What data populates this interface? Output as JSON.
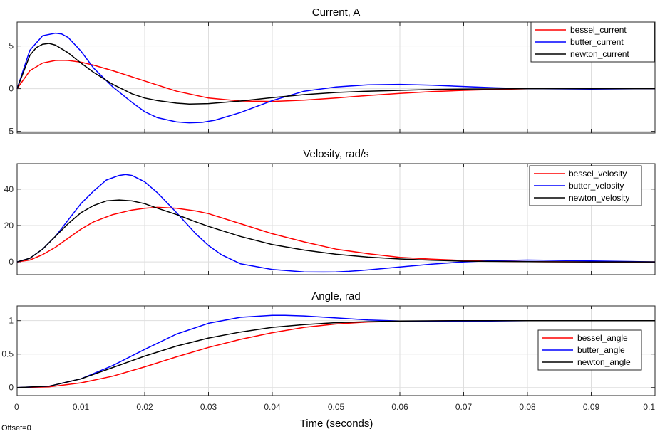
{
  "figure": {
    "xlabel": "Time (seconds)",
    "offset_text": "Offset=0",
    "colors": {
      "bessel": "#ff0000",
      "butter": "#0000ff",
      "newton": "#000000"
    }
  },
  "chart_data": [
    {
      "type": "line",
      "title": "Current, A",
      "xlabel": "",
      "ylabel": "",
      "xlim": [
        0,
        0.1
      ],
      "ylim": [
        -5.2,
        7.8
      ],
      "xticks": [
        0,
        0.01,
        0.02,
        0.03,
        0.04,
        0.05,
        0.06,
        0.07,
        0.08,
        0.09,
        0.1
      ],
      "yticks": [
        -5,
        0,
        5
      ],
      "ytick_labels": [
        "-5",
        "0",
        "5"
      ],
      "grid": true,
      "legend_position": "top-right",
      "series": [
        {
          "name": "bessel_current",
          "color": "#ff0000",
          "x": [
            0,
            0.002,
            0.004,
            0.006,
            0.007,
            0.008,
            0.01,
            0.012,
            0.015,
            0.02,
            0.025,
            0.03,
            0.035,
            0.04,
            0.045,
            0.05,
            0.055,
            0.06,
            0.065,
            0.07,
            0.075,
            0.08,
            0.09,
            0.1
          ],
          "y": [
            0,
            2.1,
            3.0,
            3.3,
            3.32,
            3.3,
            3.1,
            2.75,
            2.1,
            0.9,
            -0.3,
            -1.1,
            -1.45,
            -1.5,
            -1.35,
            -1.1,
            -0.8,
            -0.55,
            -0.35,
            -0.2,
            -0.1,
            -0.02,
            0,
            0
          ]
        },
        {
          "name": "butter_current",
          "color": "#0000ff",
          "x": [
            0,
            0.002,
            0.004,
            0.006,
            0.007,
            0.008,
            0.01,
            0.012,
            0.015,
            0.018,
            0.02,
            0.022,
            0.025,
            0.027,
            0.029,
            0.031,
            0.035,
            0.04,
            0.045,
            0.05,
            0.055,
            0.06,
            0.065,
            0.07,
            0.075,
            0.08,
            0.09,
            0.1
          ],
          "y": [
            0,
            4.5,
            6.2,
            6.5,
            6.4,
            6.0,
            4.4,
            2.4,
            0.2,
            -1.6,
            -2.7,
            -3.4,
            -3.9,
            -4.0,
            -3.95,
            -3.7,
            -2.8,
            -1.4,
            -0.3,
            0.2,
            0.45,
            0.5,
            0.4,
            0.25,
            0.1,
            0,
            -0.05,
            0
          ]
        },
        {
          "name": "newton_current",
          "color": "#000000",
          "x": [
            0,
            0.002,
            0.003,
            0.004,
            0.005,
            0.006,
            0.008,
            0.01,
            0.012,
            0.015,
            0.018,
            0.02,
            0.022,
            0.025,
            0.027,
            0.03,
            0.035,
            0.04,
            0.045,
            0.05,
            0.055,
            0.06,
            0.065,
            0.07,
            0.08,
            0.09,
            0.1
          ],
          "y": [
            0,
            3.9,
            4.8,
            5.2,
            5.3,
            5.1,
            4.2,
            3.0,
            1.9,
            0.5,
            -0.6,
            -1.1,
            -1.4,
            -1.7,
            -1.8,
            -1.75,
            -1.45,
            -1.05,
            -0.7,
            -0.45,
            -0.3,
            -0.2,
            -0.1,
            -0.05,
            0,
            0,
            0
          ]
        }
      ]
    },
    {
      "type": "line",
      "title": "Velosity, rad/s",
      "xlabel": "",
      "ylabel": "",
      "xlim": [
        0,
        0.1
      ],
      "ylim": [
        -7,
        54
      ],
      "xticks": [
        0,
        0.01,
        0.02,
        0.03,
        0.04,
        0.05,
        0.06,
        0.07,
        0.08,
        0.09,
        0.1
      ],
      "yticks": [
        0,
        20,
        40
      ],
      "ytick_labels": [
        "0",
        "20",
        "40"
      ],
      "grid": true,
      "legend_position": "top-right",
      "series": [
        {
          "name": "bessel_velosity",
          "color": "#ff0000",
          "x": [
            0,
            0.002,
            0.004,
            0.006,
            0.008,
            0.01,
            0.012,
            0.015,
            0.018,
            0.02,
            0.022,
            0.025,
            0.028,
            0.03,
            0.035,
            0.04,
            0.045,
            0.05,
            0.055,
            0.06,
            0.065,
            0.07,
            0.075,
            0.08,
            0.09,
            0.1
          ],
          "y": [
            0,
            1,
            4,
            8,
            13,
            18,
            22,
            26,
            28.5,
            29.5,
            30,
            29.5,
            28,
            26.5,
            21,
            15.5,
            11,
            7,
            4.5,
            2.5,
            1.5,
            0.8,
            0.3,
            0.1,
            0,
            0
          ]
        },
        {
          "name": "butter_velosity",
          "color": "#0000ff",
          "x": [
            0,
            0.002,
            0.004,
            0.006,
            0.008,
            0.01,
            0.012,
            0.014,
            0.016,
            0.017,
            0.018,
            0.02,
            0.022,
            0.025,
            0.028,
            0.03,
            0.032,
            0.035,
            0.04,
            0.045,
            0.048,
            0.05,
            0.052,
            0.055,
            0.06,
            0.065,
            0.07,
            0.075,
            0.08,
            0.085,
            0.09,
            0.1
          ],
          "y": [
            0,
            2,
            7,
            14,
            23,
            32,
            39,
            45,
            47.5,
            48,
            47.5,
            44,
            38,
            27,
            15.5,
            9,
            4,
            -1,
            -4.2,
            -5.5,
            -5.6,
            -5.5,
            -5.2,
            -4.4,
            -2.8,
            -1.2,
            0,
            0.7,
            1,
            0.8,
            0.5,
            0
          ]
        },
        {
          "name": "newton_velosity",
          "color": "#000000",
          "x": [
            0,
            0.002,
            0.004,
            0.006,
            0.008,
            0.01,
            0.012,
            0.014,
            0.016,
            0.018,
            0.02,
            0.022,
            0.025,
            0.028,
            0.03,
            0.035,
            0.04,
            0.045,
            0.05,
            0.055,
            0.06,
            0.065,
            0.07,
            0.08,
            0.09,
            0.1
          ],
          "y": [
            0,
            2,
            7,
            14,
            21,
            27,
            31,
            33.5,
            34,
            33.5,
            32,
            29.5,
            26,
            22,
            19.5,
            14,
            9.5,
            6.5,
            4.2,
            2.6,
            1.6,
            0.9,
            0.4,
            0.1,
            0,
            0
          ]
        }
      ]
    },
    {
      "type": "line",
      "title": "Angle, rad",
      "xlabel": "Time (seconds)",
      "ylabel": "",
      "xlim": [
        0,
        0.1
      ],
      "ylim": [
        -0.12,
        1.22
      ],
      "xticks": [
        0,
        0.01,
        0.02,
        0.03,
        0.04,
        0.05,
        0.06,
        0.07,
        0.08,
        0.09,
        0.1
      ],
      "xtick_labels": [
        "0",
        "0.01",
        "0.02",
        "0.03",
        "0.04",
        "0.05",
        "0.06",
        "0.07",
        "0.08",
        "0.09",
        "0.1"
      ],
      "yticks": [
        0,
        0.5,
        1
      ],
      "ytick_labels": [
        "0",
        "0.5",
        "1"
      ],
      "grid": true,
      "legend_position": "middle-right",
      "series": [
        {
          "name": "bessel_angle",
          "color": "#ff0000",
          "x": [
            0,
            0.005,
            0.01,
            0.015,
            0.02,
            0.025,
            0.03,
            0.035,
            0.04,
            0.045,
            0.05,
            0.055,
            0.06,
            0.07,
            0.08,
            0.09,
            0.1
          ],
          "y": [
            0,
            0.01,
            0.07,
            0.17,
            0.31,
            0.46,
            0.6,
            0.72,
            0.82,
            0.9,
            0.95,
            0.98,
            0.99,
            1.0,
            1.0,
            1.0,
            1.0
          ]
        },
        {
          "name": "butter_angle",
          "color": "#0000ff",
          "x": [
            0,
            0.005,
            0.01,
            0.015,
            0.02,
            0.025,
            0.03,
            0.035,
            0.04,
            0.042,
            0.045,
            0.05,
            0.055,
            0.06,
            0.065,
            0.07,
            0.08,
            0.09,
            0.1
          ],
          "y": [
            0,
            0.02,
            0.13,
            0.33,
            0.57,
            0.8,
            0.96,
            1.05,
            1.08,
            1.08,
            1.07,
            1.04,
            1.01,
            0.995,
            0.99,
            0.99,
            1.0,
            1.0,
            1.0
          ]
        },
        {
          "name": "newton_angle",
          "color": "#000000",
          "x": [
            0,
            0.005,
            0.01,
            0.015,
            0.02,
            0.025,
            0.03,
            0.035,
            0.04,
            0.045,
            0.05,
            0.055,
            0.06,
            0.07,
            0.08,
            0.09,
            0.1
          ],
          "y": [
            0,
            0.02,
            0.13,
            0.3,
            0.47,
            0.62,
            0.74,
            0.83,
            0.9,
            0.94,
            0.97,
            0.985,
            0.995,
            1.0,
            1.0,
            1.0,
            1.0
          ]
        }
      ]
    }
  ]
}
